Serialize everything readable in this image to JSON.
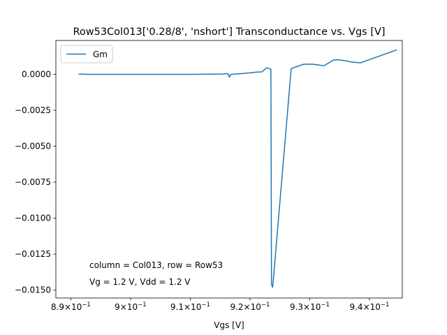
{
  "chart_data": {
    "type": "line",
    "title": "Row53Col013['0.28/8', 'nshort'] Transconductance vs. Vgs [V]",
    "xlabel": "Vgs [V]",
    "ylabel": "",
    "xlim": [
      0.8875,
      0.9455
    ],
    "ylim": [
      -0.01555,
      0.00235
    ],
    "x_ticks": [
      {
        "value": 0.89,
        "base": "8.9",
        "exp": "−1"
      },
      {
        "value": 0.9,
        "base": "9",
        "exp": "−1"
      },
      {
        "value": 0.91,
        "base": "9.1",
        "exp": "−1"
      },
      {
        "value": 0.92,
        "base": "9.2",
        "exp": "−1"
      },
      {
        "value": 0.93,
        "base": "9.3",
        "exp": "−1"
      },
      {
        "value": 0.94,
        "base": "9.4",
        "exp": "−1"
      }
    ],
    "x_tick_suffix": "10",
    "y_ticks": [
      {
        "value": 0.0,
        "label": "0.0000"
      },
      {
        "value": -0.0025,
        "label": "−0.0025"
      },
      {
        "value": -0.005,
        "label": "−0.0050"
      },
      {
        "value": -0.0075,
        "label": "−0.0075"
      },
      {
        "value": -0.01,
        "label": "−0.0100"
      },
      {
        "value": -0.0125,
        "label": "−0.0125"
      },
      {
        "value": -0.015,
        "label": "−0.0150"
      }
    ],
    "legend": {
      "position": "upper-left",
      "entries": [
        "Gm"
      ]
    },
    "series": [
      {
        "name": "Gm",
        "color": "#1f77b4",
        "x": [
          0.8913,
          0.8918,
          0.8925,
          0.9,
          0.91,
          0.9155,
          0.9163,
          0.9165,
          0.9168,
          0.918,
          0.92,
          0.921,
          0.922,
          0.9228,
          0.9235,
          0.9236,
          0.9238,
          0.9269,
          0.929,
          0.9305,
          0.9324,
          0.934,
          0.935,
          0.9365,
          0.937,
          0.9385,
          0.9446
        ],
        "y": [
          0.0,
          2e-05,
          0.0,
          0.0,
          0.0,
          2e-05,
          5e-05,
          -0.0002,
          0.0,
          3e-05,
          0.0001,
          0.00015,
          0.00017,
          0.00045,
          0.00035,
          -0.0146,
          -0.0148,
          0.0004,
          0.0007,
          0.0007,
          0.0006,
          0.001,
          0.001,
          0.0009,
          0.00085,
          0.0008,
          0.0017
        ]
      }
    ],
    "annotations": [
      "column = Col013, row = Row53",
      "Vg = 1.2 V, Vdd = 1.2 V"
    ]
  }
}
